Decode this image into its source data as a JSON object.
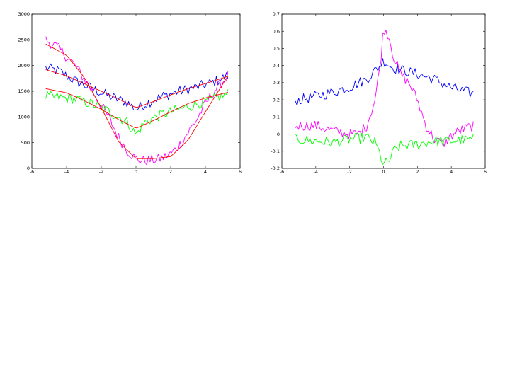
{
  "chart_data": [
    {
      "type": "line",
      "title": "",
      "xlabel": "",
      "ylabel": "",
      "xlim": [
        -6,
        6
      ],
      "ylim": [
        0,
        3000
      ],
      "xticks": [
        "-6",
        "-4",
        "-2",
        "0",
        "2",
        "4",
        "6"
      ],
      "yticks": [
        "0",
        "500",
        "1000",
        "1500",
        "2000",
        "2500",
        "3000"
      ],
      "grid": false,
      "series": [
        {
          "color": "#0000ff",
          "style": "noisy",
          "x": [
            -5.2,
            -4.5,
            -3.5,
            -2.5,
            -1.5,
            -0.5,
            0,
            0.5,
            1.5,
            2.5,
            3.5,
            4.5,
            5.3
          ],
          "values": [
            1950,
            1900,
            1700,
            1550,
            1400,
            1280,
            1150,
            1250,
            1400,
            1500,
            1580,
            1680,
            1800
          ]
        },
        {
          "color": "#ff00ff",
          "style": "noisy",
          "x": [
            -5.2,
            -4.5,
            -3.5,
            -2.5,
            -1.5,
            -1,
            -0.5,
            0,
            0.5,
            1,
            1.5,
            2,
            2.5,
            3,
            3.5,
            4,
            4.5,
            5.3
          ],
          "values": [
            2500,
            2350,
            2000,
            1500,
            950,
            600,
            350,
            180,
            150,
            160,
            200,
            280,
            450,
            700,
            950,
            1250,
            1500,
            1800
          ]
        },
        {
          "color": "#00ff00",
          "style": "noisy",
          "x": [
            -5.2,
            -4.5,
            -3.5,
            -2.5,
            -1.5,
            -0.5,
            0,
            0.5,
            1.5,
            2.5,
            3.5,
            4.5,
            5.3
          ],
          "values": [
            1400,
            1380,
            1350,
            1250,
            1100,
            900,
            650,
            900,
            1050,
            1150,
            1250,
            1350,
            1450
          ]
        },
        {
          "color": "#ff0000",
          "style": "smooth",
          "x": [
            -5.2,
            -4,
            -3,
            -2,
            -1,
            0,
            1,
            2,
            3,
            4,
            5.3
          ],
          "values": [
            1920,
            1800,
            1650,
            1500,
            1350,
            1180,
            1300,
            1430,
            1550,
            1650,
            1790
          ]
        },
        {
          "color": "#ff0000",
          "style": "smooth",
          "x": [
            -5.2,
            -4,
            -3,
            -2,
            -1,
            0,
            1,
            2,
            3,
            4,
            5.3
          ],
          "values": [
            1550,
            1470,
            1320,
            1150,
            950,
            780,
            930,
            1100,
            1260,
            1370,
            1480
          ]
        },
        {
          "color": "#ff0000",
          "style": "smooth",
          "x": [
            -5.2,
            -4,
            -3,
            -2,
            -1,
            0,
            1,
            2,
            3,
            4,
            5.3
          ],
          "values": [
            2420,
            2200,
            1780,
            1180,
            520,
            190,
            190,
            230,
            550,
            1100,
            1800
          ]
        }
      ]
    },
    {
      "type": "line",
      "title": "",
      "xlabel": "",
      "ylabel": "",
      "xlim": [
        -6,
        6
      ],
      "ylim": [
        -0.2,
        0.7
      ],
      "xticks": [
        "-6",
        "-4",
        "-2",
        "0",
        "2",
        "4",
        "6"
      ],
      "yticks": [
        "-0.2",
        "-0.1",
        "0",
        "0.1",
        "0.2",
        "0.3",
        "0.4",
        "0.5",
        "0.6",
        "0.7"
      ],
      "grid": false,
      "series": [
        {
          "color": "#0000ff",
          "style": "noisy",
          "x": [
            -5.2,
            -4,
            -3,
            -2,
            -1,
            -0.3,
            0,
            0.5,
            1,
            2,
            3,
            4,
            5.3
          ],
          "values": [
            0.195,
            0.22,
            0.245,
            0.275,
            0.32,
            0.39,
            0.43,
            0.39,
            0.375,
            0.35,
            0.32,
            0.27,
            0.235
          ]
        },
        {
          "color": "#ff00ff",
          "style": "noisy",
          "x": [
            -5.2,
            -4,
            -3,
            -2,
            -1.5,
            -1,
            -0.5,
            -0.2,
            0,
            0.3,
            0.6,
            1,
            1.5,
            2,
            2.5,
            3,
            3.5,
            4,
            4.5,
            5.3
          ],
          "values": [
            0.05,
            0.05,
            0.02,
            0.0,
            0.0,
            0.05,
            0.2,
            0.4,
            0.62,
            0.58,
            0.45,
            0.35,
            0.3,
            0.2,
            0.05,
            -0.03,
            -0.06,
            -0.01,
            0.02,
            0.05
          ]
        },
        {
          "color": "#00ff00",
          "style": "noisy",
          "x": [
            -5.2,
            -4,
            -3,
            -2,
            -1,
            -0.5,
            -0.2,
            0,
            0.3,
            0.6,
            1,
            2,
            3,
            4,
            5.3
          ],
          "values": [
            -0.03,
            -0.04,
            -0.05,
            -0.03,
            -0.02,
            -0.05,
            -0.12,
            -0.18,
            -0.16,
            -0.1,
            -0.07,
            -0.06,
            -0.04,
            -0.04,
            -0.03
          ]
        }
      ]
    }
  ]
}
